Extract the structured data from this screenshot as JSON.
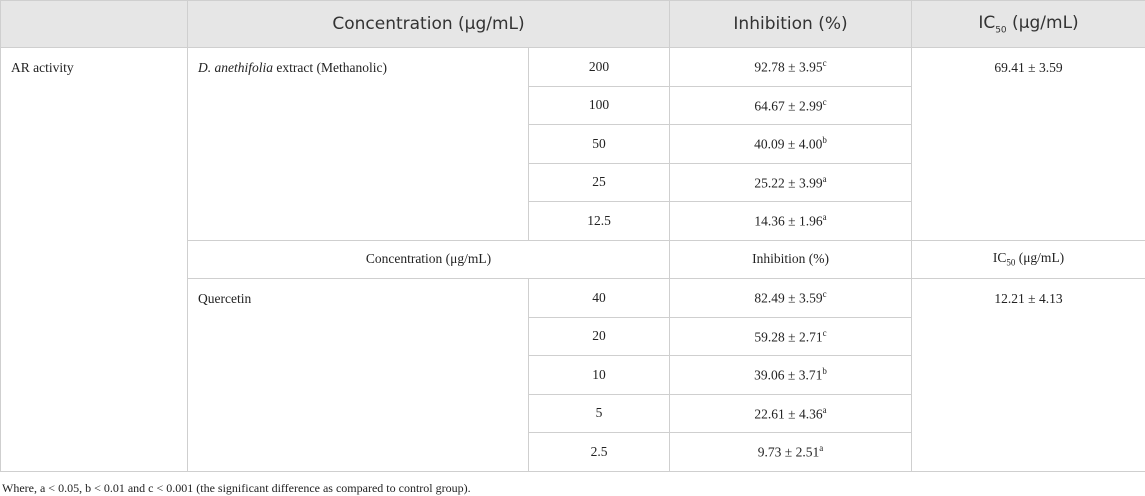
{
  "header": {
    "concentration": "Concentration (μg/mL)",
    "inhibition": "Inhibition (%)",
    "ic50": {
      "base": "IC",
      "sub": "50",
      "unit": " (μg/mL)"
    }
  },
  "row_label": "AR activity",
  "groups": [
    {
      "sample": {
        "italic": "D. anethifolia",
        "rest": " extract (Methanolic)"
      },
      "ic50": "69.41 ± 3.59",
      "rows": [
        {
          "concentration": "200",
          "inhibition": "92.78 ± 3.95",
          "sig": "c"
        },
        {
          "concentration": "100",
          "inhibition": "64.67 ± 2.99",
          "sig": "c"
        },
        {
          "concentration": "50",
          "inhibition": "40.09 ± 4.00",
          "sig": "b"
        },
        {
          "concentration": "25",
          "inhibition": "25.22 ± 3.99",
          "sig": "a"
        },
        {
          "concentration": "12.5",
          "inhibition": "14.36 ± 1.96",
          "sig": "a"
        }
      ]
    },
    {
      "subheader": {
        "concentration": "Concentration (μg/mL)",
        "inhibition": "Inhibition (%)",
        "ic50": {
          "base": "IC",
          "sub": "50",
          "unit": " (μg/mL)"
        }
      },
      "sample": {
        "italic": "",
        "rest": "Quercetin"
      },
      "ic50": "12.21 ± 4.13",
      "rows": [
        {
          "concentration": "40",
          "inhibition": "82.49 ± 3.59",
          "sig": "c"
        },
        {
          "concentration": "20",
          "inhibition": "59.28 ± 2.71",
          "sig": "c"
        },
        {
          "concentration": "10",
          "inhibition": "39.06 ± 3.71",
          "sig": "b"
        },
        {
          "concentration": "5",
          "inhibition": "22.61 ± 4.36",
          "sig": "a"
        },
        {
          "concentration": "2.5",
          "inhibition": "9.73 ± 2.51",
          "sig": "a"
        }
      ]
    }
  ],
  "footnote": "Where, a < 0.05, b < 0.01 and c < 0.001 (the significant difference as compared to control group)."
}
